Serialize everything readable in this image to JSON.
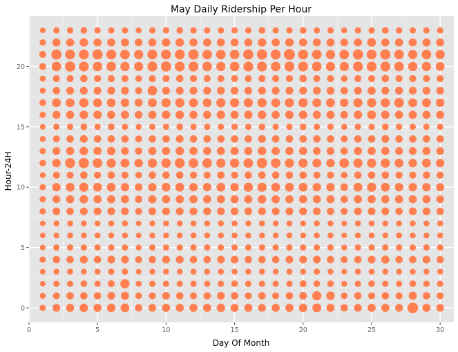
{
  "chart_data": {
    "type": "scatter",
    "title": "May Daily Ridership Per Hour",
    "xlabel": "Day Of Month",
    "ylabel": "Hour-24H",
    "xlim": [
      0,
      31
    ],
    "ylim": [
      -1.2,
      24.2
    ],
    "x_ticks": [
      0,
      5,
      10,
      15,
      20,
      25,
      30
    ],
    "y_ticks": [
      0,
      5,
      10,
      15,
      20
    ],
    "grid": true,
    "legend": "none",
    "point_color": "#ff7f50",
    "panel_color": "#e5e5e5",
    "grid_color": "#ffffff",
    "size_encoding": "ridership count (relative, 0-1)",
    "days": [
      1,
      2,
      3,
      4,
      5,
      6,
      7,
      8,
      9,
      10,
      11,
      12,
      13,
      14,
      15,
      16,
      17,
      18,
      19,
      20,
      21,
      22,
      23,
      24,
      25,
      26,
      27,
      28,
      29,
      30
    ],
    "hours": [
      0,
      1,
      2,
      3,
      4,
      5,
      6,
      7,
      8,
      9,
      10,
      11,
      12,
      13,
      14,
      15,
      16,
      17,
      18,
      19,
      20,
      21,
      22,
      23
    ],
    "relative_size": [
      [
        0.3,
        0.5,
        0.55,
        0.6,
        0.55,
        0.6,
        0.65,
        0.45,
        0.5,
        0.55,
        0.55,
        0.55,
        0.55,
        0.6,
        0.55,
        0.55,
        0.5,
        0.55,
        0.55,
        0.6,
        0.65,
        0.55,
        0.45,
        0.5,
        0.55,
        0.55,
        0.5,
        0.9,
        0.55,
        0.5
      ],
      [
        0.25,
        0.4,
        0.45,
        0.45,
        0.45,
        0.5,
        0.55,
        0.35,
        0.4,
        0.5,
        0.45,
        0.4,
        0.45,
        0.5,
        0.45,
        0.4,
        0.45,
        0.4,
        0.45,
        0.5,
        0.7,
        0.6,
        0.35,
        0.45,
        0.4,
        0.45,
        0.4,
        0.55,
        0.45,
        0.4
      ],
      [
        0.2,
        0.3,
        0.3,
        0.35,
        0.3,
        0.4,
        0.7,
        0.25,
        0.3,
        0.3,
        0.3,
        0.3,
        0.3,
        0.3,
        0.35,
        0.3,
        0.3,
        0.3,
        0.3,
        0.4,
        0.35,
        0.35,
        0.25,
        0.3,
        0.35,
        0.3,
        0.3,
        0.35,
        0.3,
        0.3
      ],
      [
        0.2,
        0.25,
        0.25,
        0.25,
        0.25,
        0.3,
        0.3,
        0.2,
        0.25,
        0.25,
        0.25,
        0.25,
        0.25,
        0.25,
        0.25,
        0.25,
        0.25,
        0.25,
        0.25,
        0.25,
        0.3,
        0.25,
        0.2,
        0.25,
        0.25,
        0.25,
        0.25,
        0.25,
        0.25,
        0.25
      ],
      [
        0.3,
        0.45,
        0.45,
        0.5,
        0.45,
        0.5,
        0.5,
        0.4,
        0.45,
        0.5,
        0.5,
        0.45,
        0.45,
        0.5,
        0.5,
        0.45,
        0.45,
        0.45,
        0.5,
        0.5,
        0.5,
        0.45,
        0.4,
        0.45,
        0.5,
        0.55,
        0.45,
        0.45,
        0.5,
        0.45
      ],
      [
        0.2,
        0.3,
        0.3,
        0.3,
        0.3,
        0.3,
        0.3,
        0.25,
        0.3,
        0.3,
        0.3,
        0.3,
        0.3,
        0.3,
        0.3,
        0.3,
        0.3,
        0.3,
        0.3,
        0.3,
        0.3,
        0.3,
        0.25,
        0.3,
        0.3,
        0.3,
        0.3,
        0.3,
        0.3,
        0.3
      ],
      [
        0.2,
        0.25,
        0.25,
        0.25,
        0.25,
        0.25,
        0.25,
        0.2,
        0.25,
        0.25,
        0.25,
        0.25,
        0.25,
        0.25,
        0.25,
        0.25,
        0.25,
        0.25,
        0.25,
        0.25,
        0.25,
        0.25,
        0.2,
        0.25,
        0.25,
        0.25,
        0.25,
        0.25,
        0.25,
        0.25
      ],
      [
        0.2,
        0.25,
        0.25,
        0.25,
        0.25,
        0.25,
        0.25,
        0.2,
        0.25,
        0.25,
        0.25,
        0.25,
        0.25,
        0.25,
        0.25,
        0.25,
        0.25,
        0.25,
        0.25,
        0.25,
        0.25,
        0.25,
        0.2,
        0.25,
        0.25,
        0.25,
        0.25,
        0.25,
        0.25,
        0.25
      ],
      [
        0.3,
        0.5,
        0.45,
        0.5,
        0.5,
        0.5,
        0.5,
        0.4,
        0.5,
        0.5,
        0.5,
        0.5,
        0.5,
        0.5,
        0.5,
        0.5,
        0.5,
        0.5,
        0.5,
        0.5,
        0.5,
        0.45,
        0.4,
        0.5,
        0.5,
        0.5,
        0.45,
        0.5,
        0.5,
        0.45
      ],
      [
        0.3,
        0.5,
        0.55,
        0.6,
        0.55,
        0.55,
        0.55,
        0.45,
        0.55,
        0.55,
        0.55,
        0.55,
        0.55,
        0.55,
        0.55,
        0.55,
        0.6,
        0.55,
        0.55,
        0.55,
        0.55,
        0.55,
        0.45,
        0.55,
        0.55,
        0.55,
        0.55,
        0.55,
        0.55,
        0.5
      ],
      [
        0.3,
        0.6,
        0.65,
        0.7,
        0.65,
        0.65,
        0.6,
        0.5,
        0.6,
        0.65,
        0.65,
        0.6,
        0.6,
        0.65,
        0.6,
        0.7,
        0.7,
        0.65,
        0.65,
        0.65,
        0.6,
        0.6,
        0.5,
        0.65,
        0.7,
        0.65,
        0.6,
        0.6,
        0.6,
        0.55
      ],
      [
        0.25,
        0.4,
        0.4,
        0.45,
        0.4,
        0.45,
        0.4,
        0.35,
        0.45,
        0.45,
        0.45,
        0.4,
        0.4,
        0.45,
        0.4,
        0.45,
        0.45,
        0.45,
        0.45,
        0.45,
        0.4,
        0.4,
        0.35,
        0.45,
        0.45,
        0.45,
        0.4,
        0.4,
        0.45,
        0.4
      ],
      [
        0.35,
        0.6,
        0.8,
        0.85,
        0.75,
        0.7,
        0.65,
        0.6,
        0.7,
        0.75,
        0.8,
        0.75,
        0.75,
        0.7,
        0.7,
        0.75,
        0.85,
        0.75,
        0.7,
        0.7,
        0.65,
        0.6,
        0.75,
        0.7,
        0.7,
        0.7,
        0.65,
        0.6,
        0.65,
        0.6
      ],
      [
        0.3,
        0.5,
        0.55,
        0.6,
        0.55,
        0.6,
        0.5,
        0.45,
        0.55,
        0.55,
        0.6,
        0.55,
        0.55,
        0.55,
        0.55,
        0.55,
        0.6,
        0.55,
        0.55,
        0.55,
        0.5,
        0.5,
        0.45,
        0.55,
        0.55,
        0.55,
        0.5,
        0.5,
        0.55,
        0.5
      ],
      [
        0.25,
        0.4,
        0.45,
        0.5,
        0.45,
        0.45,
        0.45,
        0.4,
        0.45,
        0.45,
        0.5,
        0.45,
        0.45,
        0.45,
        0.45,
        0.45,
        0.5,
        0.45,
        0.45,
        0.45,
        0.45,
        0.45,
        0.4,
        0.45,
        0.45,
        0.5,
        0.45,
        0.45,
        0.45,
        0.45
      ],
      [
        0.2,
        0.3,
        0.3,
        0.35,
        0.3,
        0.35,
        0.3,
        0.25,
        0.3,
        0.3,
        0.35,
        0.3,
        0.3,
        0.3,
        0.3,
        0.3,
        0.35,
        0.3,
        0.3,
        0.35,
        0.3,
        0.3,
        0.25,
        0.3,
        0.3,
        0.35,
        0.3,
        0.3,
        0.3,
        0.3
      ],
      [
        0.3,
        0.55,
        0.55,
        0.6,
        0.6,
        0.55,
        0.55,
        0.5,
        0.55,
        0.6,
        0.6,
        0.55,
        0.55,
        0.6,
        0.55,
        0.6,
        0.6,
        0.55,
        0.6,
        0.6,
        0.55,
        0.55,
        0.5,
        0.6,
        0.65,
        0.6,
        0.55,
        0.55,
        0.55,
        0.55
      ],
      [
        0.35,
        0.65,
        0.65,
        0.7,
        0.65,
        0.65,
        0.6,
        0.55,
        0.65,
        0.7,
        0.7,
        0.65,
        0.65,
        0.7,
        0.7,
        0.7,
        0.7,
        0.65,
        0.7,
        0.7,
        0.65,
        0.65,
        0.6,
        0.7,
        0.7,
        0.7,
        0.75,
        0.65,
        0.65,
        0.6
      ],
      [
        0.25,
        0.45,
        0.5,
        0.5,
        0.5,
        0.5,
        0.5,
        0.4,
        0.75,
        0.5,
        0.5,
        0.5,
        0.5,
        0.5,
        0.5,
        0.5,
        0.5,
        0.5,
        0.5,
        0.5,
        0.5,
        0.5,
        0.45,
        0.5,
        0.55,
        0.5,
        0.5,
        0.5,
        0.5,
        0.5
      ],
      [
        0.25,
        0.4,
        0.4,
        0.45,
        0.4,
        0.4,
        0.4,
        0.35,
        0.4,
        0.4,
        0.45,
        0.4,
        0.4,
        0.4,
        0.4,
        0.4,
        0.4,
        0.4,
        0.4,
        0.45,
        0.4,
        0.4,
        0.35,
        0.4,
        0.4,
        0.45,
        0.4,
        0.4,
        0.4,
        0.4
      ],
      [
        0.4,
        0.75,
        0.85,
        0.8,
        0.75,
        0.75,
        0.7,
        0.7,
        0.8,
        0.85,
        0.8,
        0.8,
        0.75,
        0.7,
        0.75,
        0.8,
        0.8,
        0.75,
        0.8,
        0.8,
        0.75,
        0.7,
        0.7,
        0.8,
        0.8,
        0.8,
        0.75,
        0.7,
        0.7,
        0.65
      ],
      [
        0.4,
        0.85,
        0.8,
        0.8,
        0.85,
        0.8,
        0.75,
        0.7,
        0.8,
        0.8,
        0.8,
        0.85,
        0.75,
        0.75,
        0.75,
        0.85,
        0.85,
        0.8,
        0.95,
        0.8,
        0.75,
        0.7,
        0.75,
        0.85,
        0.8,
        0.85,
        0.75,
        0.7,
        0.75,
        0.7
      ],
      [
        0.3,
        0.55,
        0.55,
        0.6,
        0.55,
        0.55,
        0.55,
        0.5,
        0.55,
        0.6,
        0.6,
        0.55,
        0.55,
        0.55,
        0.55,
        0.55,
        0.6,
        0.55,
        0.6,
        0.55,
        0.55,
        0.55,
        0.5,
        0.55,
        0.65,
        0.55,
        0.55,
        0.55,
        0.55,
        0.55
      ],
      [
        0.2,
        0.3,
        0.3,
        0.35,
        0.3,
        0.3,
        0.3,
        0.25,
        0.3,
        0.3,
        0.35,
        0.3,
        0.3,
        0.3,
        0.3,
        0.3,
        0.35,
        0.3,
        0.3,
        0.35,
        0.3,
        0.3,
        0.25,
        0.3,
        0.3,
        0.35,
        0.3,
        0.3,
        0.3,
        0.3
      ]
    ]
  }
}
